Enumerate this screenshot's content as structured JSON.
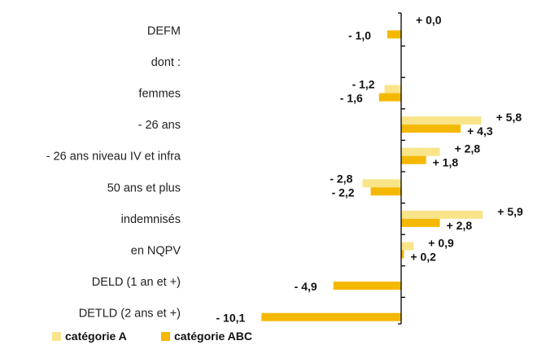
{
  "chart_data": {
    "type": "bar",
    "orientation": "horizontal",
    "categories": [
      "DEFM",
      "dont :",
      "femmes",
      "- 26 ans",
      "- 26 ans niveau IV et infra",
      "50 ans et plus",
      "indemnisés",
      "en NQPV",
      "DELD (1 an et +)",
      "DETLD (2 ans et +)"
    ],
    "series": [
      {
        "name": "catégorie A",
        "color": "#F9E48A",
        "values": [
          0.0,
          null,
          -1.2,
          5.8,
          2.8,
          -2.8,
          5.9,
          0.9,
          null,
          null
        ],
        "labels": [
          "+ 0,0",
          "",
          "- 1,2",
          "+ 5,8",
          "+ 2,8",
          "- 2,8",
          "+ 5,9",
          "+ 0,9",
          "",
          ""
        ]
      },
      {
        "name": "catégorie ABC",
        "color": "#F5B800",
        "values": [
          -1.0,
          null,
          -1.6,
          4.3,
          1.8,
          -2.2,
          2.8,
          0.2,
          -4.9,
          -10.1
        ],
        "labels": [
          "- 1,0",
          "",
          "- 1,6",
          "+ 4,3",
          "+ 1,8",
          "- 2,2",
          "+ 2,8",
          "+ 0,2",
          "- 4,9",
          "- 10,1"
        ]
      }
    ],
    "xlim": [
      -10.6,
      7.0
    ],
    "grid": false,
    "legend_position": "bottom-left"
  }
}
